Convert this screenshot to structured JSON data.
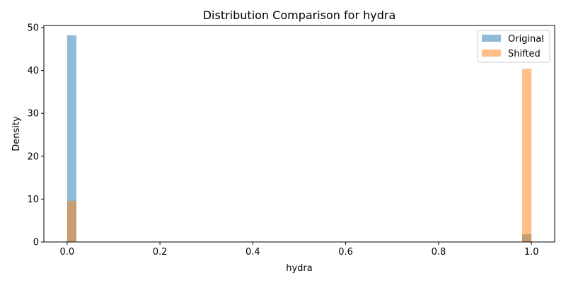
{
  "chart_data": {
    "type": "bar",
    "title": "Distribution Comparison for hydra",
    "xlabel": "hydra",
    "ylabel": "Density",
    "xlim": [
      -0.05,
      1.05
    ],
    "ylim": [
      0,
      50.5
    ],
    "x_ticks": [
      "0.0",
      "0.2",
      "0.4",
      "0.6",
      "0.8",
      "1.0"
    ],
    "x_tick_values": [
      0.0,
      0.2,
      0.4,
      0.6,
      0.8,
      1.0
    ],
    "y_ticks": [
      "0",
      "10",
      "20",
      "30",
      "40",
      "50"
    ],
    "y_tick_values": [
      0,
      10,
      20,
      30,
      40,
      50
    ],
    "bin_width": 0.02,
    "grid": false,
    "legend_position": "top-right",
    "series": [
      {
        "name": "Original",
        "color": "#1f77b4",
        "alpha": 0.5,
        "bins": [
          {
            "x0": 0.0,
            "x1": 0.02,
            "value": 48.2
          },
          {
            "x0": 0.98,
            "x1": 1.0,
            "value": 1.8
          }
        ]
      },
      {
        "name": "Shifted",
        "color": "#ff7f0e",
        "alpha": 0.5,
        "bins": [
          {
            "x0": 0.0,
            "x1": 0.02,
            "value": 9.6
          },
          {
            "x0": 0.98,
            "x1": 1.0,
            "value": 40.4
          }
        ]
      }
    ]
  }
}
